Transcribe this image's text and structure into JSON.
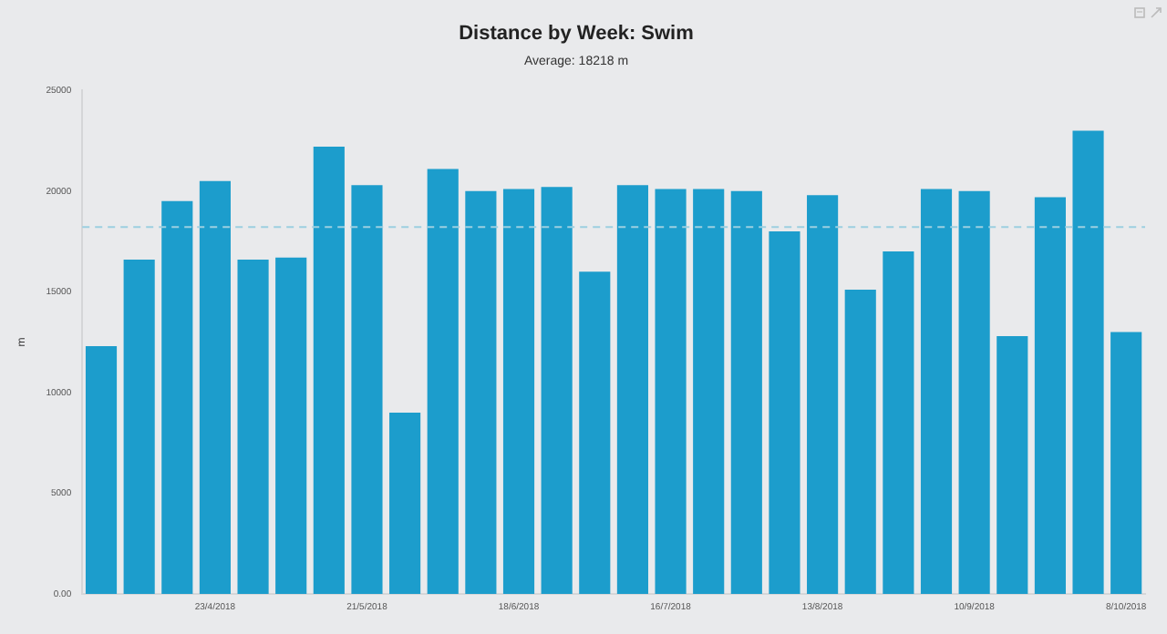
{
  "chart_data": {
    "type": "bar",
    "title": "Distance by Week: Swim",
    "subtitle": "Average: 18218 m",
    "ylabel": "m",
    "categories": [
      null,
      null,
      null,
      "23/4/2018",
      null,
      null,
      null,
      "21/5/2018",
      null,
      null,
      null,
      "18/6/2018",
      null,
      null,
      null,
      "16/7/2018",
      null,
      null,
      null,
      "13/8/2018",
      null,
      null,
      null,
      "10/9/2018",
      null,
      null,
      null,
      "8/10/2018"
    ],
    "values": [
      12300,
      16600,
      19500,
      20500,
      16600,
      16700,
      22200,
      20300,
      9000,
      21100,
      20000,
      20100,
      20200,
      16000,
      20300,
      20100,
      20100,
      20000,
      18000,
      19800,
      15100,
      17000,
      20100,
      20000,
      12800,
      19700,
      23000,
      13000
    ],
    "color": "#1c9dcc",
    "ylim": [
      0,
      25000
    ],
    "yticks": [
      {
        "value": 0,
        "label": "0.00"
      },
      5000,
      10000,
      15000,
      20000,
      25000
    ],
    "ref_lines": [
      {
        "axis": "y",
        "value": 18218,
        "color": "#9ccfe0",
        "line_style": "dashed"
      }
    ],
    "grid": false,
    "legend": false
  }
}
